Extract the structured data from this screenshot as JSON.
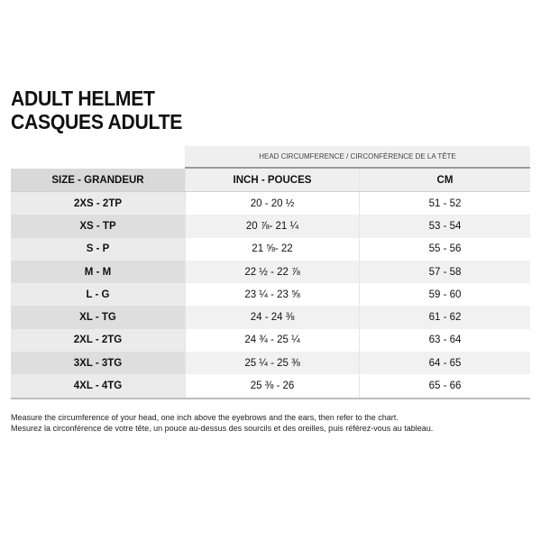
{
  "title": {
    "line1": "ADULT HELMET",
    "line2": "CASQUES ADULTE"
  },
  "table": {
    "super_header": "HEAD CIRCUMFERENCE / CIRCONFÉRENCE DE LA TÊTE",
    "columns": [
      "SIZE - GRANDEUR",
      "INCH - POUCES",
      "CM"
    ],
    "rows": [
      [
        "2XS - 2TP",
        "20 - 20 ½",
        "51 - 52"
      ],
      [
        "XS - TP",
        "20 ⅞- 21 ¼",
        "53 - 54"
      ],
      [
        "S - P",
        "21 ⅝- 22",
        "55 - 56"
      ],
      [
        "M - M",
        "22 ½ - 22 ⅞",
        "57 - 58"
      ],
      [
        "L - G",
        "23 ¼ - 23 ⅝",
        "59 - 60"
      ],
      [
        "XL - TG",
        "24 - 24 ⅜",
        "61 - 62"
      ],
      [
        "2XL - 2TG",
        "24 ¾ - 25 ¼",
        "63 - 64"
      ],
      [
        "3XL - 3TG",
        "25 ¼ - 25 ⅜",
        "64 - 65"
      ],
      [
        "4XL - 4TG",
        "25 ⅜ - 26",
        "65 - 66"
      ]
    ]
  },
  "notes": {
    "en": "Measure the circumference of your head, one inch above the eyebrows and the ears, then refer to the chart.",
    "fr": "Mesurez la circonférence de votre tête, un pouce au-dessus des sourcils et des oreilles, puis référez-vous au tableau."
  }
}
